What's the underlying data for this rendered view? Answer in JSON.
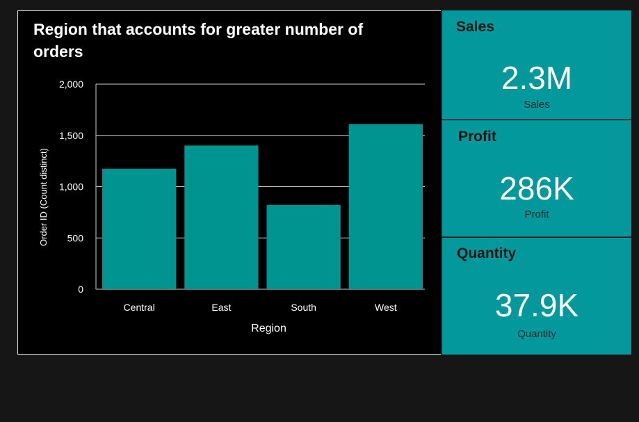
{
  "chart_data": {
    "type": "bar",
    "title": "Region that accounts for greater number of orders",
    "xlabel": "Region",
    "ylabel": "Order ID (Count distinct)",
    "categories": [
      "Central",
      "East",
      "South",
      "West"
    ],
    "values": [
      1175,
      1401,
      822,
      1611
    ],
    "ylim": [
      0,
      2000
    ],
    "yticks": [
      0,
      500,
      1000,
      1500,
      2000
    ],
    "ytick_labels": [
      "0",
      "500",
      "1,000",
      "1,500",
      "2,000"
    ],
    "grid": true,
    "bar_color": "#009490"
  },
  "kpis": [
    {
      "title": "Sales",
      "value": "2.3M",
      "label": "Sales"
    },
    {
      "title": "Profit",
      "value": "286K",
      "label": "Profit"
    },
    {
      "title": "Quantity",
      "value": "37.9K",
      "label": "Quantity"
    }
  ],
  "colors": {
    "kpi_background": "#03999c",
    "page_background": "#161616",
    "chart_background": "#000000"
  }
}
